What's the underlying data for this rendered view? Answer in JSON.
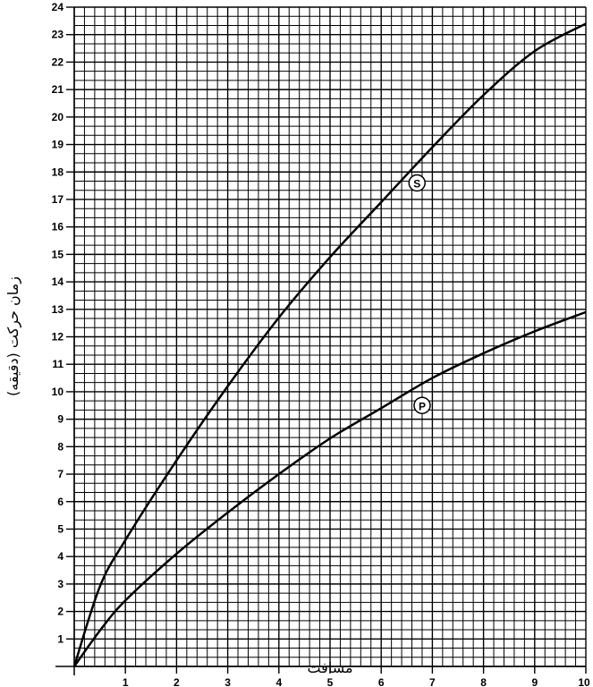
{
  "chart_data": {
    "type": "line",
    "xlabel": "مسافت",
    "ylabel": "زمان حرکت (دقیقه)",
    "xlim": [
      0,
      10
    ],
    "ylim": [
      0,
      24
    ],
    "x_ticks": [
      "1",
      "2",
      "3",
      "4",
      "5",
      "6",
      "7",
      "8",
      "9",
      "10"
    ],
    "y_ticks": [
      "1",
      "2",
      "3",
      "4",
      "5",
      "6",
      "7",
      "8",
      "9",
      "10",
      "11",
      "12",
      "13",
      "14",
      "15",
      "16",
      "17",
      "18",
      "19",
      "20",
      "21",
      "22",
      "23",
      "24"
    ],
    "grid": true,
    "x": [
      0,
      0.5,
      1,
      2,
      3,
      4,
      5,
      6,
      7,
      8,
      9,
      10
    ],
    "series": [
      {
        "name": "S",
        "values": [
          0,
          2.9,
          4.6,
          7.5,
          10.2,
          12.7,
          14.9,
          16.9,
          18.9,
          20.8,
          22.4,
          23.4
        ],
        "label_at": [
          6.7,
          17.6
        ]
      },
      {
        "name": "P",
        "values": [
          0,
          1.3,
          2.4,
          4.1,
          5.6,
          7.0,
          8.3,
          9.4,
          10.5,
          11.4,
          12.2,
          12.9
        ],
        "label_at": [
          6.8,
          9.5
        ]
      }
    ],
    "colors": {
      "line": "#000000",
      "grid": "#000000",
      "background": "#ffffff"
    }
  }
}
